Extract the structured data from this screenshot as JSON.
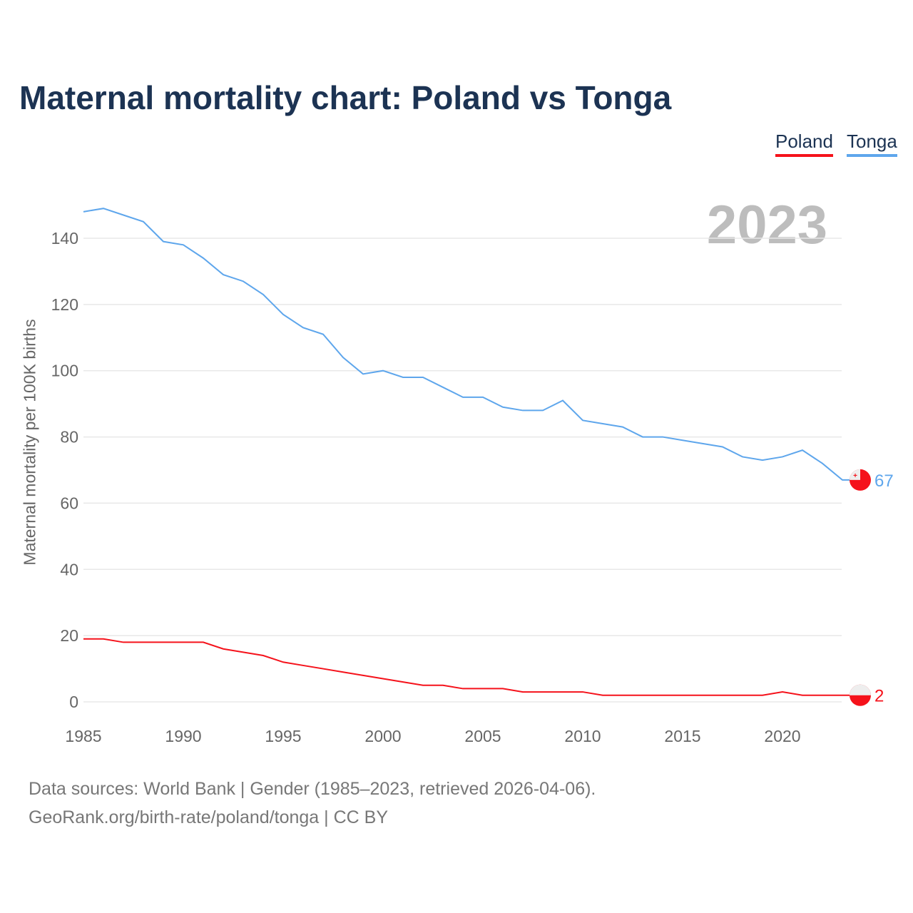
{
  "chart_data": {
    "type": "line",
    "title": "Maternal mortality chart: Poland vs Tonga",
    "ylabel": "Maternal mortality per 100K births",
    "xlabel": "",
    "year_label": "2023",
    "xlim": [
      1985,
      2023
    ],
    "ylim": [
      0,
      150
    ],
    "xticks": [
      1985,
      1990,
      1995,
      2000,
      2005,
      2010,
      2015,
      2020
    ],
    "yticks": [
      0,
      20,
      40,
      60,
      80,
      100,
      120,
      140
    ],
    "grid": true,
    "legend_position": "top-right",
    "x": [
      1985,
      1986,
      1987,
      1988,
      1989,
      1990,
      1991,
      1992,
      1993,
      1994,
      1995,
      1996,
      1997,
      1998,
      1999,
      2000,
      2001,
      2002,
      2003,
      2004,
      2005,
      2006,
      2007,
      2008,
      2009,
      2010,
      2011,
      2012,
      2013,
      2014,
      2015,
      2016,
      2017,
      2018,
      2019,
      2020,
      2021,
      2022,
      2023
    ],
    "series": [
      {
        "name": "Poland",
        "color": "#f5121b",
        "end_label": "2",
        "values": [
          19,
          19,
          18,
          18,
          18,
          18,
          18,
          16,
          15,
          14,
          12,
          11,
          10,
          9,
          8,
          7,
          6,
          5,
          5,
          4,
          4,
          4,
          3,
          3,
          3,
          3,
          2,
          2,
          2,
          2,
          2,
          2,
          2,
          2,
          2,
          3,
          2,
          2,
          2
        ]
      },
      {
        "name": "Tonga",
        "color": "#5ea6ec",
        "end_label": "67",
        "values": [
          148,
          149,
          147,
          145,
          139,
          138,
          134,
          129,
          127,
          123,
          117,
          113,
          111,
          104,
          99,
          100,
          98,
          98,
          95,
          92,
          92,
          89,
          88,
          88,
          91,
          85,
          84,
          83,
          80,
          80,
          79,
          78,
          77,
          74,
          73,
          74,
          76,
          72,
          67
        ]
      }
    ]
  },
  "footer": {
    "line1": "Data sources: World Bank | Gender (1985–2023, retrieved 2026-04-06).",
    "line2": "GeoRank.org/birth-rate/poland/tonga | CC BY"
  }
}
